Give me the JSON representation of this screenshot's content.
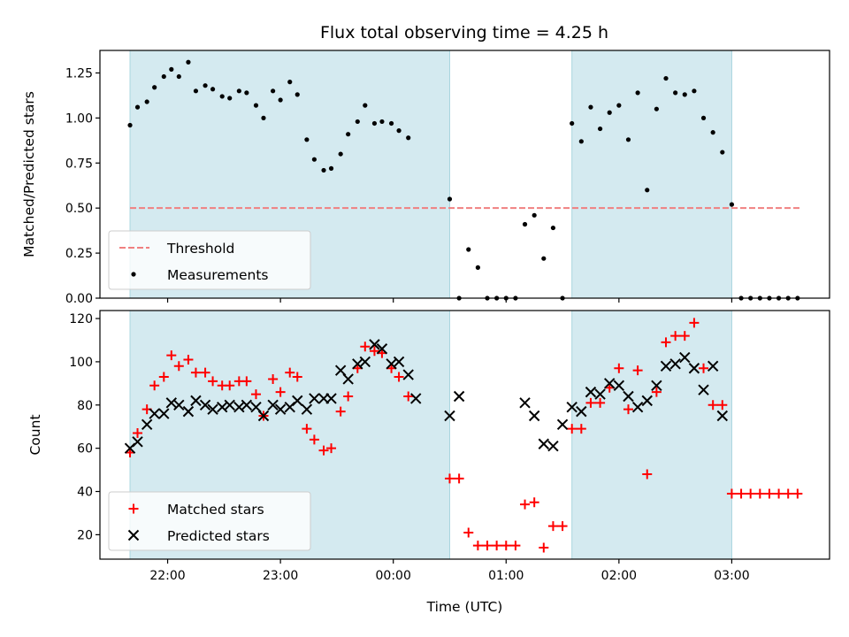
{
  "title": "Flux total observing time = 4.25 h",
  "colors": {
    "shade": "#d4eaf0",
    "shade_edge": "#a9d6df",
    "threshold": "#f08080",
    "measurements": "#000000",
    "matched": "#ff0000",
    "predicted": "#000000"
  },
  "chart_data": [
    {
      "type": "scatter",
      "ylabel": "Matched/Predicted stars",
      "xlabel": "",
      "ylim": [
        0,
        1.375
      ],
      "yticks": [
        0,
        0.25,
        0.5,
        0.75,
        1.0,
        1.25
      ],
      "ytick_labels": [
        "0.00",
        "0.25",
        "0.50",
        "0.75",
        "1.00",
        "1.25"
      ],
      "xlim": [
        "21:24",
        "03:52"
      ],
      "xtick_labels_visible": false,
      "legend": {
        "position": "lower-left",
        "entries": [
          "Threshold",
          "Measurements"
        ]
      },
      "threshold": {
        "name": "Threshold",
        "y": 0.5,
        "x_range": [
          "21:40",
          "03:36"
        ],
        "style": "dashed"
      },
      "shaded_intervals": [
        [
          "21:40",
          "00:30"
        ],
        [
          "01:35",
          "03:00"
        ]
      ],
      "series": [
        {
          "name": "Measurements",
          "marker": "dot",
          "points": [
            [
              "21:40",
              0.96
            ],
            [
              "21:44",
              1.06
            ],
            [
              "21:49",
              1.09
            ],
            [
              "21:53",
              1.17
            ],
            [
              "21:58",
              1.23
            ],
            [
              "22:02",
              1.27
            ],
            [
              "22:06",
              1.23
            ],
            [
              "22:11",
              1.31
            ],
            [
              "22:15",
              1.15
            ],
            [
              "22:20",
              1.18
            ],
            [
              "22:24",
              1.16
            ],
            [
              "22:29",
              1.12
            ],
            [
              "22:33",
              1.11
            ],
            [
              "22:38",
              1.15
            ],
            [
              "22:42",
              1.14
            ],
            [
              "22:47",
              1.07
            ],
            [
              "22:51",
              1.0
            ],
            [
              "22:56",
              1.15
            ],
            [
              "23:00",
              1.1
            ],
            [
              "23:05",
              1.2
            ],
            [
              "23:09",
              1.13
            ],
            [
              "23:14",
              0.88
            ],
            [
              "23:18",
              0.77
            ],
            [
              "23:23",
              0.71
            ],
            [
              "23:27",
              0.72
            ],
            [
              "23:32",
              0.8
            ],
            [
              "23:36",
              0.91
            ],
            [
              "23:41",
              0.98
            ],
            [
              "23:45",
              1.07
            ],
            [
              "23:50",
              0.97
            ],
            [
              "23:54",
              0.98
            ],
            [
              "23:59",
              0.97
            ],
            [
              "00:03",
              0.93
            ],
            [
              "00:08",
              0.89
            ],
            [
              "00:30",
              0.55
            ],
            [
              "00:35",
              0.0
            ],
            [
              "00:40",
              0.27
            ],
            [
              "00:45",
              0.17
            ],
            [
              "00:50",
              0.0
            ],
            [
              "00:55",
              0.0
            ],
            [
              "01:00",
              0.0
            ],
            [
              "01:05",
              0.0
            ],
            [
              "01:10",
              0.41
            ],
            [
              "01:15",
              0.46
            ],
            [
              "01:20",
              0.22
            ],
            [
              "01:25",
              0.39
            ],
            [
              "01:30",
              0.0
            ],
            [
              "01:35",
              0.97
            ],
            [
              "01:40",
              0.87
            ],
            [
              "01:45",
              1.06
            ],
            [
              "01:50",
              0.94
            ],
            [
              "01:55",
              1.03
            ],
            [
              "02:00",
              1.07
            ],
            [
              "02:05",
              0.88
            ],
            [
              "02:10",
              1.14
            ],
            [
              "02:15",
              0.6
            ],
            [
              "02:20",
              1.05
            ],
            [
              "02:25",
              1.22
            ],
            [
              "02:30",
              1.14
            ],
            [
              "02:35",
              1.13
            ],
            [
              "02:40",
              1.15
            ],
            [
              "02:45",
              1.0
            ],
            [
              "02:50",
              0.92
            ],
            [
              "02:55",
              0.81
            ],
            [
              "03:00",
              0.52
            ],
            [
              "03:05",
              0.0
            ],
            [
              "03:10",
              0.0
            ],
            [
              "03:15",
              0.0
            ],
            [
              "03:20",
              0.0
            ],
            [
              "03:25",
              0.0
            ],
            [
              "03:30",
              0.0
            ],
            [
              "03:35",
              0.0
            ]
          ]
        }
      ]
    },
    {
      "type": "scatter",
      "ylabel": "Count",
      "xlabel": "Time (UTC)",
      "ylim": [
        8.7,
        123.7
      ],
      "yticks": [
        20,
        40,
        60,
        80,
        100,
        120
      ],
      "ytick_labels": [
        "20",
        "40",
        "60",
        "80",
        "100",
        "120"
      ],
      "xlim": [
        "21:24",
        "03:52"
      ],
      "xticks": [
        "22:00",
        "23:00",
        "00:00",
        "01:00",
        "02:00",
        "03:00"
      ],
      "xtick_labels": [
        "22:00",
        "23:00",
        "00:00",
        "01:00",
        "02:00",
        "03:00"
      ],
      "legend": {
        "position": "lower-left",
        "entries": [
          "Matched stars",
          "Predicted stars"
        ]
      },
      "shaded_intervals": [
        [
          "21:40",
          "00:30"
        ],
        [
          "01:35",
          "03:00"
        ]
      ],
      "series": [
        {
          "name": "Matched stars",
          "marker": "plus",
          "points": [
            [
              "21:40",
              58
            ],
            [
              "21:44",
              67
            ],
            [
              "21:49",
              78
            ],
            [
              "21:53",
              89
            ],
            [
              "21:58",
              93
            ],
            [
              "22:02",
              103
            ],
            [
              "22:06",
              98
            ],
            [
              "22:11",
              101
            ],
            [
              "22:15",
              95
            ],
            [
              "22:20",
              95
            ],
            [
              "22:24",
              91
            ],
            [
              "22:29",
              89
            ],
            [
              "22:33",
              89
            ],
            [
              "22:38",
              91
            ],
            [
              "22:42",
              91
            ],
            [
              "22:47",
              85
            ],
            [
              "22:51",
              75
            ],
            [
              "22:56",
              92
            ],
            [
              "23:00",
              86
            ],
            [
              "23:05",
              95
            ],
            [
              "23:09",
              93
            ],
            [
              "23:14",
              69
            ],
            [
              "23:18",
              64
            ],
            [
              "23:23",
              59
            ],
            [
              "23:27",
              60
            ],
            [
              "23:32",
              77
            ],
            [
              "23:36",
              84
            ],
            [
              "23:41",
              97
            ],
            [
              "23:45",
              107
            ],
            [
              "23:50",
              105
            ],
            [
              "23:54",
              104
            ],
            [
              "23:59",
              97
            ],
            [
              "00:03",
              93
            ],
            [
              "00:08",
              84
            ],
            [
              "00:30",
              46
            ],
            [
              "00:35",
              46
            ],
            [
              "00:40",
              21
            ],
            [
              "00:45",
              15
            ],
            [
              "00:50",
              15
            ],
            [
              "00:55",
              15
            ],
            [
              "01:00",
              15
            ],
            [
              "01:05",
              15
            ],
            [
              "01:10",
              34
            ],
            [
              "01:15",
              35
            ],
            [
              "01:20",
              14
            ],
            [
              "01:25",
              24
            ],
            [
              "01:30",
              24
            ],
            [
              "01:35",
              69
            ],
            [
              "01:40",
              69
            ],
            [
              "01:45",
              81
            ],
            [
              "01:50",
              81
            ],
            [
              "01:55",
              88
            ],
            [
              "02:00",
              97
            ],
            [
              "02:05",
              78
            ],
            [
              "02:10",
              96
            ],
            [
              "02:15",
              48
            ],
            [
              "02:20",
              86
            ],
            [
              "02:25",
              109
            ],
            [
              "02:30",
              112
            ],
            [
              "02:35",
              112
            ],
            [
              "02:40",
              118
            ],
            [
              "02:45",
              97
            ],
            [
              "02:50",
              80
            ],
            [
              "02:55",
              80
            ],
            [
              "03:00",
              39
            ],
            [
              "03:05",
              39
            ],
            [
              "03:10",
              39
            ],
            [
              "03:15",
              39
            ],
            [
              "03:20",
              39
            ],
            [
              "03:25",
              39
            ],
            [
              "03:30",
              39
            ],
            [
              "03:35",
              39
            ]
          ]
        },
        {
          "name": "Predicted stars",
          "marker": "x",
          "points": [
            [
              "21:40",
              60
            ],
            [
              "21:44",
              63
            ],
            [
              "21:49",
              71
            ],
            [
              "21:53",
              76
            ],
            [
              "21:58",
              76
            ],
            [
              "22:02",
              81
            ],
            [
              "22:06",
              80
            ],
            [
              "22:11",
              77
            ],
            [
              "22:15",
              82
            ],
            [
              "22:20",
              80
            ],
            [
              "22:24",
              78
            ],
            [
              "22:29",
              79
            ],
            [
              "22:33",
              80
            ],
            [
              "22:38",
              79
            ],
            [
              "22:42",
              80
            ],
            [
              "22:47",
              79
            ],
            [
              "22:51",
              75
            ],
            [
              "22:56",
              80
            ],
            [
              "23:00",
              78
            ],
            [
              "23:05",
              79
            ],
            [
              "23:09",
              82
            ],
            [
              "23:14",
              78
            ],
            [
              "23:18",
              83
            ],
            [
              "23:23",
              83
            ],
            [
              "23:27",
              83
            ],
            [
              "23:32",
              96
            ],
            [
              "23:36",
              92
            ],
            [
              "23:41",
              99
            ],
            [
              "23:45",
              100
            ],
            [
              "23:50",
              108
            ],
            [
              "23:54",
              106
            ],
            [
              "23:59",
              99
            ],
            [
              "00:03",
              100
            ],
            [
              "00:08",
              94
            ],
            [
              "00:12",
              83
            ],
            [
              "00:30",
              75
            ],
            [
              "00:35",
              84
            ],
            [
              "01:10",
              81
            ],
            [
              "01:15",
              75
            ],
            [
              "01:20",
              62
            ],
            [
              "01:25",
              61
            ],
            [
              "01:30",
              71
            ],
            [
              "01:35",
              79
            ],
            [
              "01:40",
              77
            ],
            [
              "01:45",
              86
            ],
            [
              "01:50",
              85
            ],
            [
              "01:55",
              90
            ],
            [
              "02:00",
              89
            ],
            [
              "02:05",
              84
            ],
            [
              "02:10",
              79
            ],
            [
              "02:15",
              82
            ],
            [
              "02:20",
              89
            ],
            [
              "02:25",
              98
            ],
            [
              "02:30",
              99
            ],
            [
              "02:35",
              102
            ],
            [
              "02:40",
              97
            ],
            [
              "02:45",
              87
            ],
            [
              "02:50",
              98
            ],
            [
              "02:55",
              75
            ]
          ]
        }
      ]
    }
  ]
}
